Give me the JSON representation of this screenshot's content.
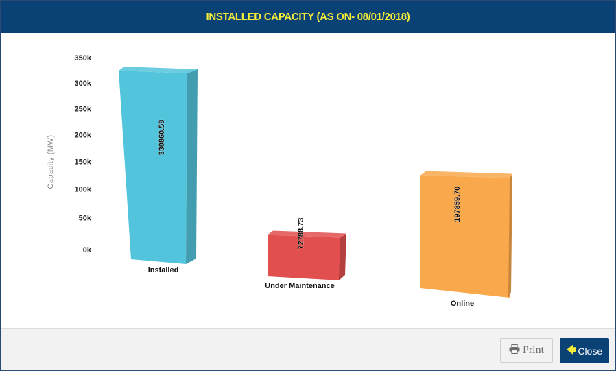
{
  "header": {
    "title": "INSTALLED CAPACITY (AS ON- 08/01/2018)"
  },
  "footer": {
    "print_label": "Print",
    "close_label": "Close",
    "print_icon": "printer-icon",
    "close_icon": "arrow-left-icon"
  },
  "colors": {
    "header_bg": "#0b4275",
    "header_text": "#f5ec3a",
    "installed": "#52c4dc",
    "under_maintenance": "#e14f4f",
    "online": "#f9a84b"
  },
  "chart_data": {
    "type": "bar",
    "title": "",
    "xlabel": "",
    "ylabel": "Capacity (MW)",
    "ylim": [
      0,
      350000
    ],
    "yticks": [
      "0k",
      "50k",
      "100k",
      "150k",
      "200k",
      "250k",
      "300k",
      "350k"
    ],
    "categories": [
      "Installed",
      "Under Maintenance",
      "Online"
    ],
    "values": [
      330860.58,
      72788.73,
      197859.7
    ],
    "data_labels": [
      "330860.58",
      "72788.73",
      "197859.70"
    ],
    "grid": false,
    "legend": "none",
    "style": "3d-perspective"
  }
}
